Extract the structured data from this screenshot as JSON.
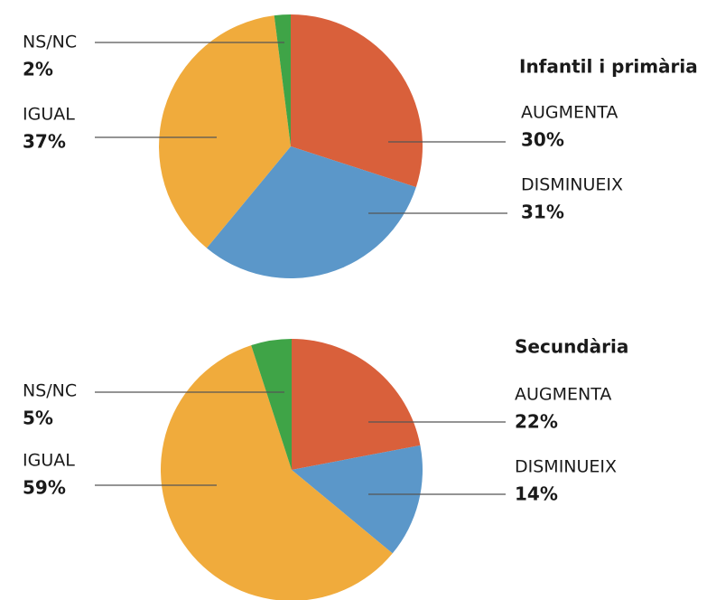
{
  "chart_data": [
    {
      "type": "pie",
      "title": "Infantil i primària",
      "categories": [
        "AUGMENTA",
        "DISMINUEIX",
        "IGUAL",
        "NS/NC"
      ],
      "values": [
        30,
        31,
        37,
        2
      ],
      "value_labels": [
        "30%",
        "31%",
        "37%",
        "2%"
      ],
      "colors": [
        "#d9603b",
        "#5b97c9",
        "#f0ab3c",
        "#3fa447"
      ]
    },
    {
      "type": "pie",
      "title": "Secundària",
      "categories": [
        "AUGMENTA",
        "DISMINUEIX",
        "IGUAL",
        "NS/NC"
      ],
      "values": [
        22,
        14,
        59,
        5
      ],
      "value_labels": [
        "22%",
        "14%",
        "59%",
        "5%"
      ],
      "colors": [
        "#d9603b",
        "#5b97c9",
        "#f0ab3c",
        "#3fa447"
      ]
    }
  ]
}
